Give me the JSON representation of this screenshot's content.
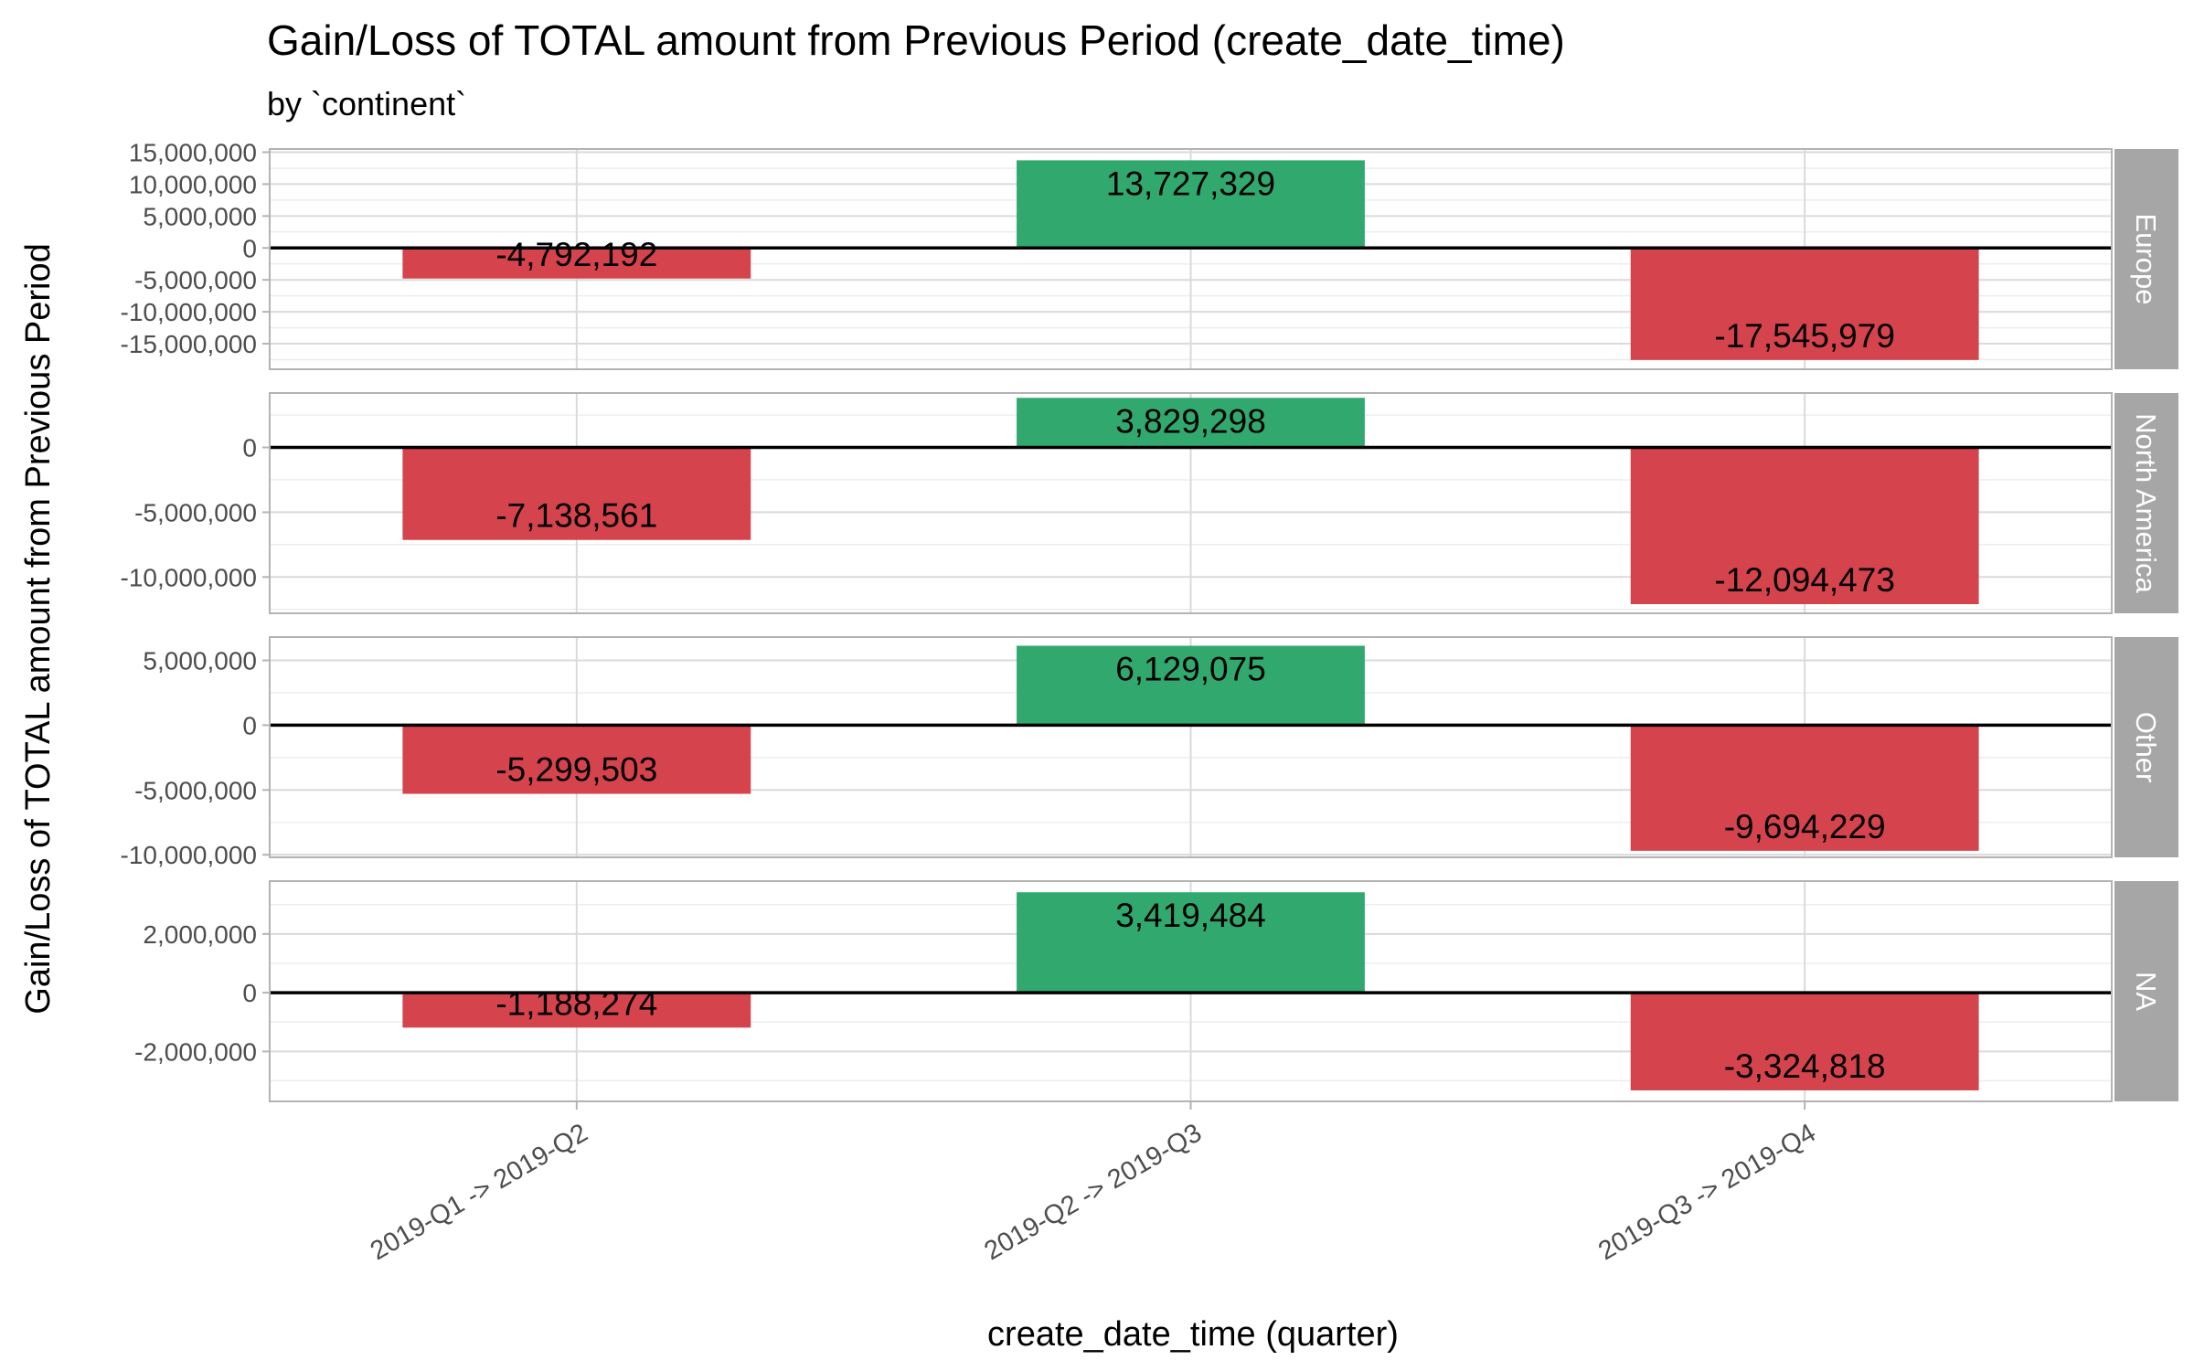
{
  "chart_data": {
    "type": "bar",
    "title": "Gain/Loss of TOTAL amount from Previous Period (create_date_time)",
    "subtitle": "by `continent`",
    "xlabel": "create_date_time (quarter)",
    "ylabel": "Gain/Loss of TOTAL amount from Previous Period",
    "categories": [
      "2019-Q1 -> 2019-Q2",
      "2019-Q2 -> 2019-Q3",
      "2019-Q3 -> 2019-Q4"
    ],
    "colors": {
      "gain": "#31a96e",
      "loss": "#d5434c",
      "strip": "#a6a6a6",
      "zero_line": "#000000"
    },
    "grid": true,
    "facet_position": "right",
    "facets": [
      {
        "name": "Europe",
        "values": [
          -4792192,
          13727329,
          -17545979
        ],
        "labels": [
          "-4,792,192",
          "13,727,329",
          "-17,545,979"
        ],
        "ylim": [
          -19000000,
          15500000
        ],
        "yticks": [
          -15000000,
          -10000000,
          -5000000,
          0,
          5000000,
          10000000,
          15000000
        ],
        "ytick_labels": [
          "-15,000,000",
          "-10,000,000",
          "-5,000,000",
          "0",
          "5,000,000",
          "10,000,000",
          "15,000,000"
        ]
      },
      {
        "name": "North America",
        "values": [
          -7138561,
          3829298,
          -12094473
        ],
        "labels": [
          "-7,138,561",
          "3,829,298",
          "-12,094,473"
        ],
        "ylim": [
          -12800000,
          4200000
        ],
        "yticks": [
          -10000000,
          -5000000,
          0
        ],
        "ytick_labels": [
          "-10,000,000",
          "-5,000,000",
          "0"
        ]
      },
      {
        "name": "Other",
        "values": [
          -5299503,
          6129075,
          -9694229
        ],
        "labels": [
          "-5,299,503",
          "6,129,075",
          "-9,694,229"
        ],
        "ylim": [
          -10200000,
          6800000
        ],
        "yticks": [
          -10000000,
          -5000000,
          0,
          5000000
        ],
        "ytick_labels": [
          "-10,000,000",
          "-5,000,000",
          "0",
          "5,000,000"
        ]
      },
      {
        "name": "NA",
        "values": [
          -1188274,
          3419484,
          -3324818
        ],
        "labels": [
          "-1,188,274",
          "3,419,484",
          "-3,324,818"
        ],
        "ylim": [
          -3700000,
          3800000
        ],
        "yticks": [
          -2000000,
          0,
          2000000
        ],
        "ytick_labels": [
          "-2,000,000",
          "0",
          "2,000,000"
        ]
      }
    ]
  }
}
